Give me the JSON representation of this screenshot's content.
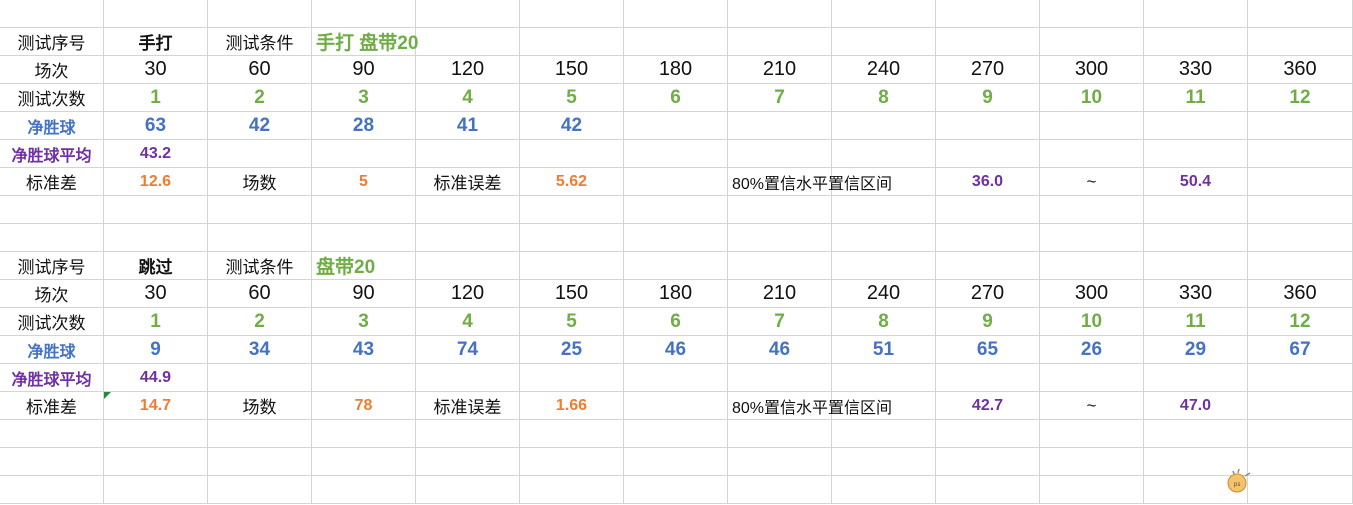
{
  "colors": {
    "green": "#70ad47",
    "blue": "#4472c4",
    "purple": "#7030a0",
    "orange": "#ed7d31",
    "black": "#111111"
  },
  "rows": [
    [],
    [
      {
        "t": "测试序号"
      },
      {
        "t": "手打",
        "s": "bold"
      },
      {
        "t": "测试条件"
      },
      {
        "t": "手打 盘带20",
        "c": "green",
        "s": "num",
        "a": "left"
      }
    ],
    [
      {
        "t": "场次"
      },
      {
        "t": "30",
        "s": "big"
      },
      {
        "t": "60",
        "s": "big"
      },
      {
        "t": "90",
        "s": "big"
      },
      {
        "t": "120",
        "s": "big"
      },
      {
        "t": "150",
        "s": "big"
      },
      {
        "t": "180",
        "s": "big"
      },
      {
        "t": "210",
        "s": "big"
      },
      {
        "t": "240",
        "s": "big"
      },
      {
        "t": "270",
        "s": "big"
      },
      {
        "t": "300",
        "s": "big"
      },
      {
        "t": "330",
        "s": "big"
      },
      {
        "t": "360",
        "s": "big"
      }
    ],
    [
      {
        "t": "测试次数"
      },
      {
        "t": "1",
        "c": "green",
        "s": "num"
      },
      {
        "t": "2",
        "c": "green",
        "s": "num"
      },
      {
        "t": "3",
        "c": "green",
        "s": "num"
      },
      {
        "t": "4",
        "c": "green",
        "s": "num"
      },
      {
        "t": "5",
        "c": "green",
        "s": "num"
      },
      {
        "t": "6",
        "c": "green",
        "s": "num"
      },
      {
        "t": "7",
        "c": "green",
        "s": "num"
      },
      {
        "t": "8",
        "c": "green",
        "s": "num"
      },
      {
        "t": "9",
        "c": "green",
        "s": "num"
      },
      {
        "t": "10",
        "c": "green",
        "s": "num"
      },
      {
        "t": "11",
        "c": "green",
        "s": "num"
      },
      {
        "t": "12",
        "c": "green",
        "s": "num"
      }
    ],
    [
      {
        "t": "净胜球",
        "c": "blue",
        "s": "small"
      },
      {
        "t": "63",
        "c": "blue",
        "s": "num"
      },
      {
        "t": "42",
        "c": "blue",
        "s": "num"
      },
      {
        "t": "28",
        "c": "blue",
        "s": "num"
      },
      {
        "t": "41",
        "c": "blue",
        "s": "num"
      },
      {
        "t": "42",
        "c": "blue",
        "s": "num"
      }
    ],
    [
      {
        "t": "净胜球平均",
        "c": "purple",
        "s": "small"
      },
      {
        "t": "43.2",
        "c": "purple",
        "s": "small"
      }
    ],
    [
      {
        "t": "标准差"
      },
      {
        "t": "12.6",
        "c": "orange",
        "s": "small"
      },
      {
        "t": "场数"
      },
      {
        "t": "5",
        "c": "orange",
        "s": "small"
      },
      {
        "t": "标准误差"
      },
      {
        "t": "5.62",
        "c": "orange",
        "s": "small"
      },
      {},
      {
        "t": "80%置信水平置信区间",
        "a": "left",
        "s": "sm"
      },
      {},
      {
        "t": "36.0",
        "c": "purple",
        "s": "small"
      },
      {
        "t": "~"
      },
      {
        "t": "50.4",
        "c": "purple",
        "s": "small"
      }
    ],
    [],
    [],
    [
      {
        "t": "测试序号"
      },
      {
        "t": "跳过",
        "s": "bold"
      },
      {
        "t": "测试条件"
      },
      {
        "t": "盘带20",
        "c": "green",
        "s": "num",
        "a": "left"
      }
    ],
    [
      {
        "t": "场次"
      },
      {
        "t": "30",
        "s": "big"
      },
      {
        "t": "60",
        "s": "big"
      },
      {
        "t": "90",
        "s": "big"
      },
      {
        "t": "120",
        "s": "big"
      },
      {
        "t": "150",
        "s": "big"
      },
      {
        "t": "180",
        "s": "big"
      },
      {
        "t": "210",
        "s": "big"
      },
      {
        "t": "240",
        "s": "big"
      },
      {
        "t": "270",
        "s": "big"
      },
      {
        "t": "300",
        "s": "big"
      },
      {
        "t": "330",
        "s": "big"
      },
      {
        "t": "360",
        "s": "big"
      }
    ],
    [
      {
        "t": "测试次数"
      },
      {
        "t": "1",
        "c": "green",
        "s": "num"
      },
      {
        "t": "2",
        "c": "green",
        "s": "num"
      },
      {
        "t": "3",
        "c": "green",
        "s": "num"
      },
      {
        "t": "4",
        "c": "green",
        "s": "num"
      },
      {
        "t": "5",
        "c": "green",
        "s": "num"
      },
      {
        "t": "6",
        "c": "green",
        "s": "num"
      },
      {
        "t": "7",
        "c": "green",
        "s": "num"
      },
      {
        "t": "8",
        "c": "green",
        "s": "num"
      },
      {
        "t": "9",
        "c": "green",
        "s": "num"
      },
      {
        "t": "10",
        "c": "green",
        "s": "num"
      },
      {
        "t": "11",
        "c": "green",
        "s": "num"
      },
      {
        "t": "12",
        "c": "green",
        "s": "num"
      }
    ],
    [
      {
        "t": "净胜球",
        "c": "blue",
        "s": "small"
      },
      {
        "t": "9",
        "c": "blue",
        "s": "num"
      },
      {
        "t": "34",
        "c": "blue",
        "s": "num"
      },
      {
        "t": "43",
        "c": "blue",
        "s": "num"
      },
      {
        "t": "74",
        "c": "blue",
        "s": "num"
      },
      {
        "t": "25",
        "c": "blue",
        "s": "num"
      },
      {
        "t": "46",
        "c": "blue",
        "s": "num"
      },
      {
        "t": "46",
        "c": "blue",
        "s": "num"
      },
      {
        "t": "51",
        "c": "blue",
        "s": "num"
      },
      {
        "t": "65",
        "c": "blue",
        "s": "num"
      },
      {
        "t": "26",
        "c": "blue",
        "s": "num"
      },
      {
        "t": "29",
        "c": "blue",
        "s": "num"
      },
      {
        "t": "67",
        "c": "blue",
        "s": "num"
      }
    ],
    [
      {
        "t": "净胜球平均",
        "c": "purple",
        "s": "small"
      },
      {
        "t": "44.9",
        "c": "purple",
        "s": "small"
      }
    ],
    [
      {
        "t": "标准差"
      },
      {
        "t": "14.7",
        "c": "orange",
        "s": "small",
        "flag": true
      },
      {
        "t": "场数"
      },
      {
        "t": "78",
        "c": "orange",
        "s": "small"
      },
      {
        "t": "标准误差"
      },
      {
        "t": "1.66",
        "c": "orange",
        "s": "small"
      },
      {},
      {
        "t": "80%置信水平置信区间",
        "a": "left",
        "s": "sm"
      },
      {},
      {
        "t": "42.7",
        "c": "purple",
        "s": "small"
      },
      {
        "t": "~"
      },
      {
        "t": "47.0",
        "c": "purple",
        "s": "small"
      }
    ],
    [],
    [],
    []
  ]
}
